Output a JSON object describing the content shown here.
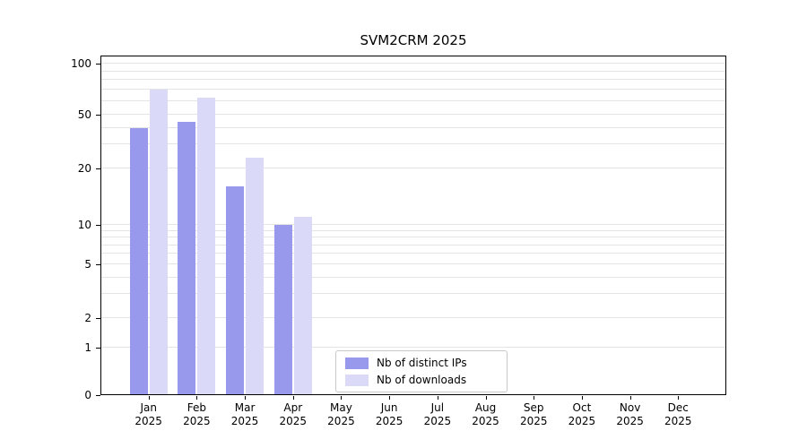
{
  "title": "SVM2CRM 2025",
  "chart_data": {
    "type": "bar",
    "title": "SVM2CRM 2025",
    "categories": [
      "Jan",
      "Feb",
      "Mar",
      "Apr",
      "May",
      "Jun",
      "Jul",
      "Aug",
      "Sep",
      "Oct",
      "Nov",
      "Dec"
    ],
    "year_label": "2025",
    "series": [
      {
        "name": "Nb of distinct IPs",
        "color": "#9898ec",
        "values": [
          40,
          44,
          16,
          10,
          0,
          0,
          0,
          0,
          0,
          0,
          0,
          0
        ]
      },
      {
        "name": "Nb of downloads",
        "color": "#dadaf8",
        "values": [
          70,
          63,
          24,
          11,
          0,
          0,
          0,
          0,
          0,
          0,
          0,
          0
        ]
      }
    ],
    "yticks": [
      0,
      1,
      2,
      5,
      10,
      20,
      50,
      100
    ],
    "ylim": [
      0,
      115
    ],
    "scale": "log-like",
    "grid": true,
    "gridline_values": [
      1,
      2,
      3,
      4,
      5,
      6,
      7,
      8,
      9,
      10,
      20,
      30,
      40,
      50,
      60,
      70,
      80,
      90,
      100
    ],
    "legend_position": "lower-center-inside",
    "colors": {
      "grid": "#e4e4e4",
      "axis": "#000000",
      "background": "#ffffff"
    }
  }
}
